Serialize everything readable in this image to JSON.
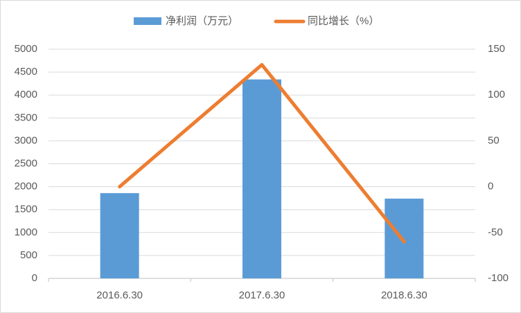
{
  "chart_data": {
    "type": "bar-line",
    "categories": [
      "2016.6.30",
      "2017.6.30",
      "2018.6.30"
    ],
    "series": [
      {
        "name": "净利润（万元）",
        "type": "bar",
        "color": "#5b9bd5",
        "values": [
          1860,
          4340,
          1740
        ]
      },
      {
        "name": "同比增长（%）",
        "type": "line",
        "color": "#ed7d31",
        "axis": "y2",
        "values": [
          0,
          133,
          -60
        ]
      }
    ],
    "ylim": [
      0,
      5000
    ],
    "yticks": [
      0,
      500,
      1000,
      1500,
      2000,
      2500,
      3000,
      3500,
      4000,
      4500,
      5000
    ],
    "y2lim": [
      -100,
      150
    ],
    "y2ticks": [
      -100,
      -50,
      0,
      50,
      100,
      150
    ],
    "grid": true,
    "legend": "top"
  }
}
